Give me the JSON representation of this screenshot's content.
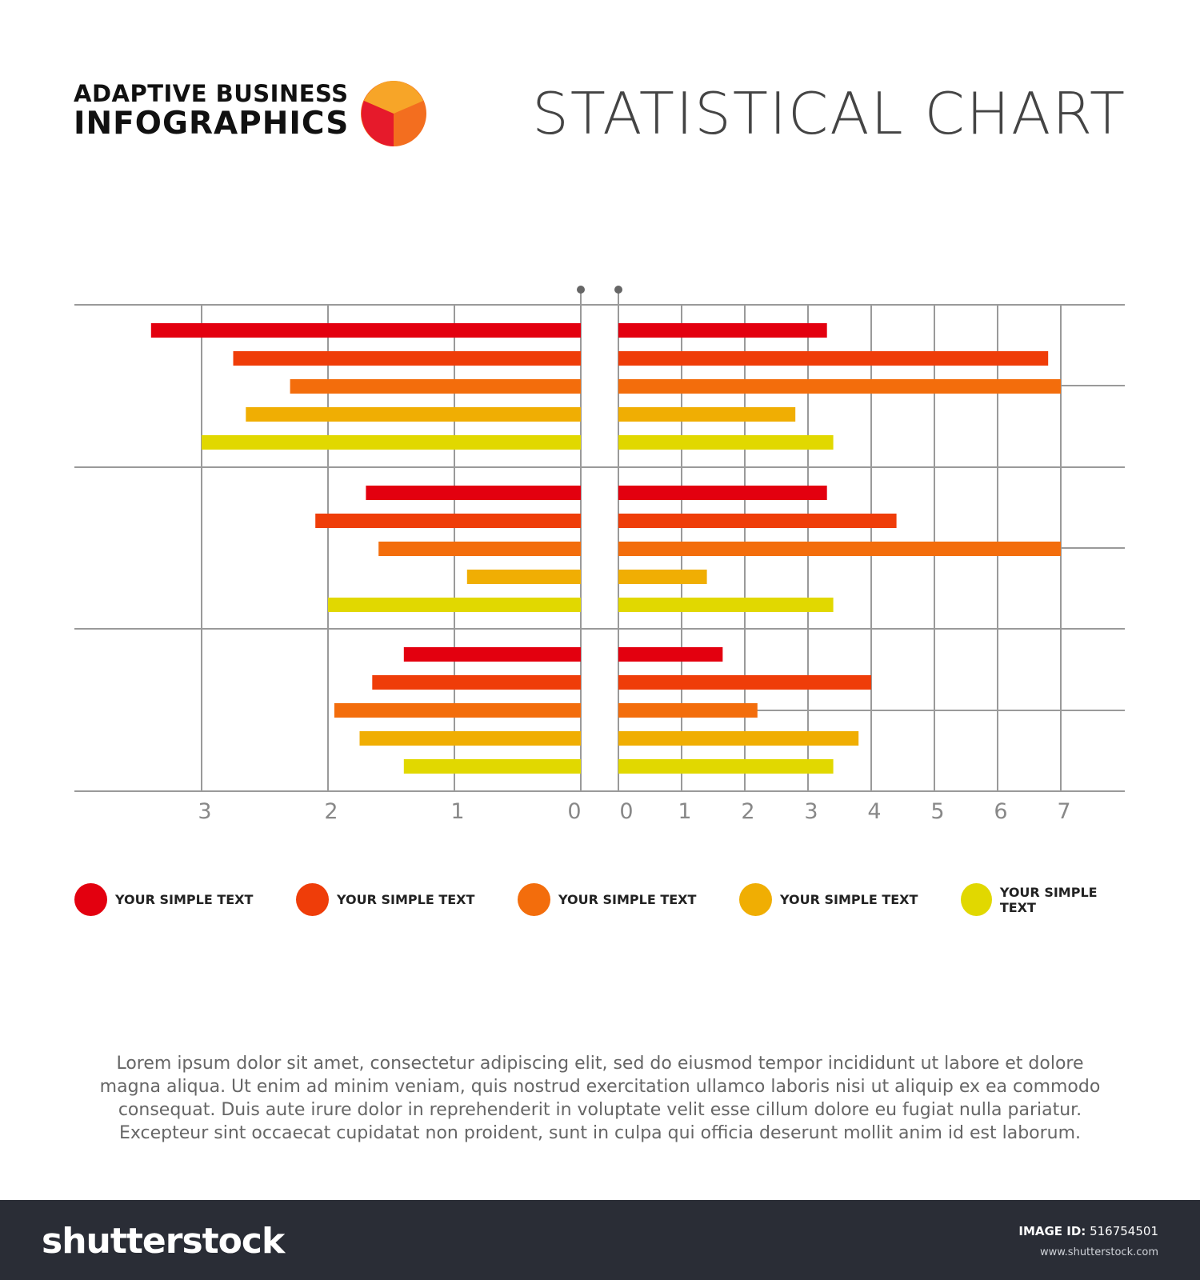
{
  "header": {
    "brand_line1": "ADAPTIVE BUSINESS",
    "brand_line2": "INFOGRAPHICS",
    "title": "STATISTICAL CHART"
  },
  "colors": {
    "series": [
      "#e3000f",
      "#ef3d09",
      "#f36d0c",
      "#f0ae03",
      "#e1d800"
    ],
    "grid": "#9a9a9a",
    "axis_text": "#888888",
    "logo": [
      "#e61a2b",
      "#f7a528",
      "#f36e1f"
    ]
  },
  "chart_data": [
    {
      "type": "bar",
      "orientation": "horizontal",
      "direction": "left",
      "groups": 3,
      "xlim": [
        0,
        3.5
      ],
      "ticks": [
        "3",
        "2",
        "1",
        "0"
      ],
      "series": [
        {
          "values": [
            3.4,
            1.7,
            1.4
          ]
        },
        {
          "values": [
            2.75,
            2.1,
            1.65
          ]
        },
        {
          "values": [
            2.3,
            1.6,
            1.95
          ]
        },
        {
          "values": [
            2.65,
            0.9,
            1.75
          ]
        },
        {
          "values": [
            3.0,
            2.0,
            1.4
          ]
        }
      ]
    },
    {
      "type": "bar",
      "orientation": "horizontal",
      "direction": "right",
      "groups": 3,
      "xlim": [
        0,
        7.5
      ],
      "ticks": [
        "0",
        "1",
        "2",
        "3",
        "4",
        "5",
        "6",
        "7"
      ],
      "series": [
        {
          "values": [
            3.3,
            3.3,
            1.65
          ]
        },
        {
          "values": [
            6.8,
            4.4,
            4.0
          ]
        },
        {
          "values": [
            7.0,
            7.0,
            2.2
          ]
        },
        {
          "values": [
            2.8,
            1.4,
            3.8
          ]
        },
        {
          "values": [
            3.4,
            3.4,
            3.4
          ]
        }
      ]
    }
  ],
  "legend": [
    {
      "label": "YOUR SIMPLE TEXT",
      "color": "#e3000f"
    },
    {
      "label": "YOUR SIMPLE TEXT",
      "color": "#ef3d09"
    },
    {
      "label": "YOUR SIMPLE TEXT",
      "color": "#f36d0c"
    },
    {
      "label": "YOUR SIMPLE TEXT",
      "color": "#f0ae03"
    },
    {
      "label": "YOUR SIMPLE TEXT",
      "color": "#e1d800"
    }
  ],
  "body_text": "Lorem ipsum dolor sit amet, consectetur adipiscing elit, sed do eiusmod tempor incididunt ut labore et dolore magna aliqua. Ut enim ad minim veniam, quis nostrud exercitation ullamco laboris nisi ut aliquip ex ea commodo consequat. Duis aute irure dolor in reprehenderit in voluptate velit esse cillum dolore eu fugiat nulla pariatur. Excepteur sint occaecat cupidatat non proident, sunt in culpa qui officia deserunt mollit anim id est laborum.",
  "footer": {
    "logo": "shutterstock",
    "image_id_label": "IMAGE ID:",
    "image_id": "516754501",
    "url": "www.shutterstock.com"
  }
}
